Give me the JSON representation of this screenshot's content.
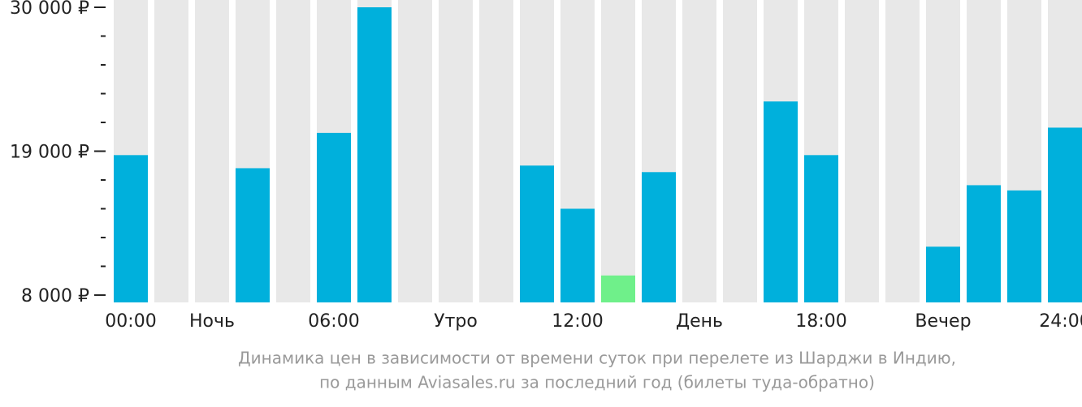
{
  "chart_data": {
    "type": "bar",
    "caption": [
      "Динамика цен в зависимости от времени суток при перелете из Шарджи в Индию,",
      "по данным Aviasales.ru за последний год (билеты туда-обратно)"
    ],
    "categories": [
      "00:00",
      null,
      "Ночь",
      null,
      null,
      "06:00",
      null,
      null,
      "Утро",
      null,
      null,
      "12:00",
      null,
      null,
      "День",
      null,
      null,
      "18:00",
      null,
      null,
      "Вечер",
      null,
      null,
      "24:00"
    ],
    "values": [
      18700,
      null,
      null,
      17700,
      null,
      20400,
      30000,
      null,
      null,
      null,
      17900,
      14600,
      9500,
      17400,
      null,
      null,
      22800,
      18700,
      null,
      null,
      11700,
      16400,
      16000,
      20800
    ],
    "colors": [
      "#00b0dc",
      null,
      null,
      "#00b0dc",
      null,
      "#00b0dc",
      "#00b0dc",
      null,
      null,
      null,
      "#00b0dc",
      "#00b0dc",
      "#6ff08a",
      "#00b0dc",
      null,
      null,
      "#00b0dc",
      "#00b0dc",
      null,
      null,
      "#00b0dc",
      "#00b0dc",
      "#00b0dc",
      "#00b0dc"
    ],
    "background_color": "#e8e8e8",
    "ylim": [
      7440,
      30000
    ],
    "yticks": [
      {
        "value": 8000,
        "label": "8 000 ₽"
      },
      {
        "value": 19000,
        "label": "19 000 ₽"
      },
      {
        "value": 30000,
        "label": "30 000 ₽"
      }
    ],
    "minor_yticks": [
      10200,
      12400,
      14600,
      16800,
      21200,
      23400,
      25600,
      27800
    ]
  }
}
